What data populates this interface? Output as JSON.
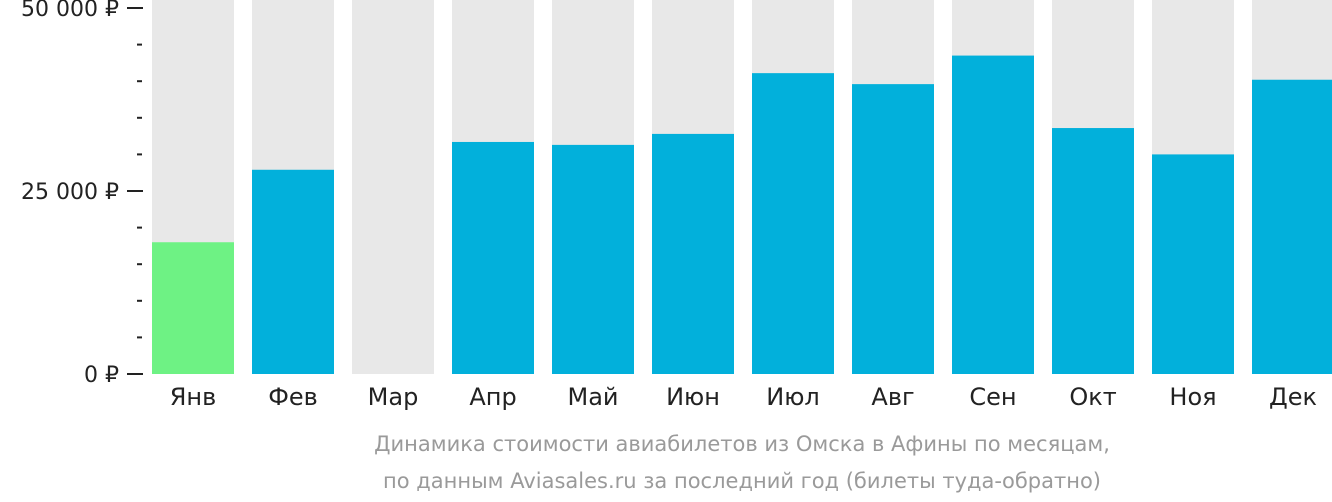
{
  "chart_data": {
    "type": "bar",
    "categories": [
      "Янв",
      "Фев",
      "Мар",
      "Апр",
      "Май",
      "Июн",
      "Июл",
      "Авг",
      "Сен",
      "Окт",
      "Ноя",
      "Дек"
    ],
    "values": [
      18000,
      27900,
      null,
      31700,
      31300,
      32800,
      41100,
      39600,
      43500,
      33600,
      30000,
      40200
    ],
    "ylim": [
      0,
      50000
    ],
    "yticks": [
      {
        "value": 0,
        "label": "0 ₽"
      },
      {
        "value": 25000,
        "label": "25 000 ₽"
      },
      {
        "value": 50000,
        "label": "50 000 ₽"
      }
    ],
    "minor_tick_step": 5000,
    "caption_line1": "Динамика стоимости авиабилетов из Омска в Афины по месяцам,",
    "caption_line2": "по данным Aviasales.ru за последний год (билеты туда-обратно)",
    "colors": {
      "bar": "#02b0db",
      "lowest_bar": "#6ef284",
      "track": "#e8e8e8",
      "axis": "#222222",
      "caption": "#9a9a9a"
    }
  }
}
